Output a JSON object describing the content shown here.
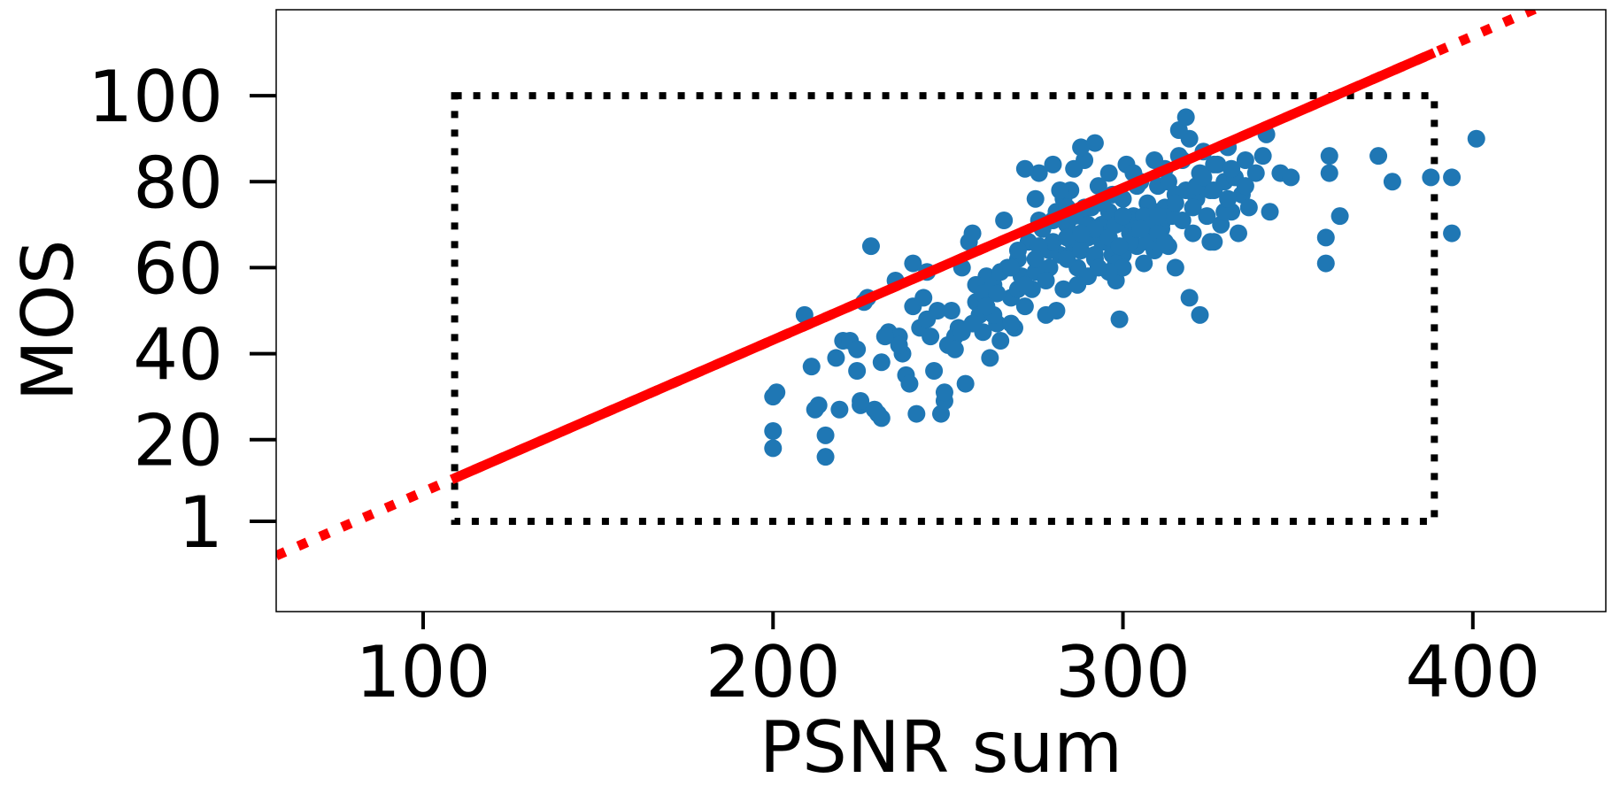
{
  "chart_data": {
    "type": "scatter",
    "title": "",
    "xlabel": "PSNR sum",
    "ylabel": "MOS",
    "xlim": [
      58,
      438
    ],
    "ylim": [
      -20,
      120
    ],
    "xticks": [
      100,
      200,
      300,
      400
    ],
    "xtick_labels": [
      "100",
      "200",
      "300",
      "400"
    ],
    "yticks": [
      1,
      20,
      40,
      60,
      80,
      100
    ],
    "ytick_labels": [
      "1",
      "20",
      "40",
      "60",
      "80",
      "100"
    ],
    "grid": false,
    "legend": "none",
    "colors": {
      "points": "#1f77b4",
      "fit_line": "#ff0000",
      "box": "#000000"
    },
    "fit_line": {
      "slope": 0.3535,
      "intercept": -27.5
    },
    "fit_segment": {
      "x": [
        109,
        389
      ]
    },
    "range_box": {
      "x": [
        109,
        389
      ],
      "y": [
        1,
        100
      ]
    },
    "series": [
      {
        "values": [
          [
            200,
            18
          ],
          [
            200,
            22
          ],
          [
            200,
            30
          ],
          [
            201,
            31
          ],
          [
            209,
            49
          ],
          [
            211,
            37
          ],
          [
            212,
            27
          ],
          [
            213,
            28
          ],
          [
            215,
            16
          ],
          [
            215,
            21
          ],
          [
            219,
            27
          ],
          [
            220,
            43
          ],
          [
            222,
            43
          ],
          [
            224,
            36
          ],
          [
            225,
            28
          ],
          [
            225,
            29
          ],
          [
            226,
            52
          ],
          [
            227,
            53
          ],
          [
            228,
            65
          ],
          [
            229,
            27
          ],
          [
            230,
            26
          ],
          [
            231,
            25
          ],
          [
            231,
            38
          ],
          [
            233,
            45
          ],
          [
            235,
            57
          ],
          [
            236,
            44
          ],
          [
            237,
            40
          ],
          [
            238,
            35
          ],
          [
            239,
            33
          ],
          [
            240,
            51
          ],
          [
            240,
            61
          ],
          [
            241,
            26
          ],
          [
            242,
            46
          ],
          [
            243,
            53
          ],
          [
            244,
            59
          ],
          [
            245,
            44
          ],
          [
            247,
            50
          ],
          [
            248,
            26
          ],
          [
            249,
            29
          ],
          [
            249,
            31
          ],
          [
            250,
            42
          ],
          [
            251,
            50
          ],
          [
            252,
            44
          ],
          [
            253,
            46
          ],
          [
            254,
            60
          ],
          [
            255,
            33
          ],
          [
            256,
            66
          ],
          [
            257,
            68
          ],
          [
            258,
            52
          ],
          [
            259,
            49
          ],
          [
            260,
            45
          ],
          [
            261,
            58
          ],
          [
            262,
            39
          ],
          [
            263,
            56
          ],
          [
            264,
            47
          ],
          [
            265,
            43
          ],
          [
            266,
            71
          ],
          [
            267,
            60
          ],
          [
            268,
            53
          ],
          [
            269,
            46
          ],
          [
            270,
            62
          ],
          [
            271,
            58
          ],
          [
            272,
            51
          ],
          [
            273,
            66
          ],
          [
            274,
            55
          ],
          [
            275,
            76
          ],
          [
            276,
            82
          ],
          [
            277,
            69
          ],
          [
            278,
            49
          ],
          [
            279,
            60
          ],
          [
            280,
            84
          ],
          [
            281,
            73
          ],
          [
            282,
            63
          ],
          [
            283,
            55
          ],
          [
            284,
            70
          ],
          [
            285,
            78
          ],
          [
            286,
            65
          ],
          [
            287,
            60
          ],
          [
            288,
            72
          ],
          [
            289,
            85
          ],
          [
            290,
            67
          ],
          [
            291,
            74
          ],
          [
            292,
            62
          ],
          [
            293,
            79
          ],
          [
            294,
            70
          ],
          [
            295,
            66
          ],
          [
            296,
            73
          ],
          [
            297,
            63
          ],
          [
            298,
            57
          ],
          [
            299,
            48
          ],
          [
            300,
            76
          ],
          [
            301,
            84
          ],
          [
            302,
            68
          ],
          [
            303,
            72
          ],
          [
            304,
            65
          ],
          [
            305,
            80
          ],
          [
            306,
            70
          ],
          [
            307,
            75
          ],
          [
            308,
            67
          ],
          [
            309,
            73
          ],
          [
            310,
            79
          ],
          [
            311,
            69
          ],
          [
            312,
            83
          ],
          [
            313,
            65
          ],
          [
            314,
            74
          ],
          [
            315,
            60
          ],
          [
            316,
            86
          ],
          [
            317,
            71
          ],
          [
            318,
            78
          ],
          [
            319,
            90
          ],
          [
            320,
            68
          ],
          [
            321,
            76
          ],
          [
            322,
            82
          ],
          [
            323,
            87
          ],
          [
            324,
            72
          ],
          [
            325,
            66
          ],
          [
            326,
            78
          ],
          [
            327,
            84
          ],
          [
            328,
            70
          ],
          [
            329,
            80
          ],
          [
            330,
            88
          ],
          [
            331,
            73
          ],
          [
            332,
            81
          ],
          [
            333,
            68
          ],
          [
            334,
            77
          ],
          [
            335,
            85
          ],
          [
            336,
            74
          ],
          [
            338,
            82
          ],
          [
            340,
            86
          ],
          [
            341,
            91
          ],
          [
            342,
            73
          ],
          [
            345,
            82
          ],
          [
            348,
            81
          ],
          [
            358,
            61
          ],
          [
            358,
            67
          ],
          [
            359,
            82
          ],
          [
            359,
            86
          ],
          [
            362,
            72
          ],
          [
            373,
            86
          ],
          [
            377,
            80
          ],
          [
            388,
            81
          ],
          [
            394,
            68
          ],
          [
            394,
            81
          ],
          [
            401,
            90
          ],
          [
            272,
            83
          ],
          [
            276,
            71
          ],
          [
            279,
            64
          ],
          [
            283,
            76
          ],
          [
            286,
            83
          ],
          [
            288,
            88
          ],
          [
            292,
            89
          ],
          [
            297,
            77
          ],
          [
            300,
            63
          ],
          [
            303,
            82
          ],
          [
            306,
            61
          ],
          [
            309,
            64
          ],
          [
            312,
            74
          ],
          [
            316,
            92
          ],
          [
            318,
            95
          ],
          [
            319,
            53
          ],
          [
            322,
            49
          ],
          [
            326,
            66
          ],
          [
            329,
            73
          ],
          [
            268,
            47
          ],
          [
            263,
            49
          ],
          [
            258,
            56
          ],
          [
            252,
            41
          ],
          [
            246,
            36
          ],
          [
            236,
            42
          ],
          [
            232,
            44
          ],
          [
            224,
            41
          ],
          [
            218,
            39
          ],
          [
            244,
            48
          ],
          [
            260,
            54
          ],
          [
            265,
            59
          ],
          [
            270,
            55
          ],
          [
            275,
            59
          ],
          [
            280,
            66
          ],
          [
            284,
            62
          ],
          [
            290,
            70
          ],
          [
            294,
            66
          ],
          [
            298,
            61
          ],
          [
            302,
            71
          ],
          [
            307,
            66
          ],
          [
            311,
            70
          ],
          [
            315,
            77
          ],
          [
            320,
            74
          ],
          [
            325,
            78
          ],
          [
            330,
            76
          ],
          [
            335,
            79
          ],
          [
            284,
            67
          ],
          [
            286,
            72
          ],
          [
            288,
            64
          ],
          [
            290,
            58
          ],
          [
            292,
            69
          ],
          [
            294,
            75
          ],
          [
            296,
            67
          ],
          [
            298,
            70
          ],
          [
            300,
            72
          ],
          [
            302,
            66
          ],
          [
            304,
            69
          ],
          [
            306,
            72
          ],
          [
            308,
            70
          ],
          [
            310,
            68
          ],
          [
            312,
            66
          ],
          [
            314,
            72
          ],
          [
            300,
            60
          ],
          [
            296,
            59
          ],
          [
            292,
            63
          ],
          [
            288,
            68
          ],
          [
            284,
            74
          ],
          [
            280,
            71
          ],
          [
            276,
            65
          ],
          [
            272,
            56
          ],
          [
            268,
            60
          ],
          [
            264,
            54
          ],
          [
            261,
            51
          ],
          [
            257,
            47
          ],
          [
            254,
            45
          ],
          [
            270,
            64
          ],
          [
            275,
            62
          ],
          [
            278,
            57
          ],
          [
            281,
            50
          ],
          [
            287,
            56
          ],
          [
            293,
            60
          ],
          [
            299,
            65
          ],
          [
            305,
            69
          ],
          [
            310,
            72
          ],
          [
            315,
            75
          ],
          [
            321,
            79
          ],
          [
            326,
            84
          ],
          [
            331,
            83
          ],
          [
            317,
            85
          ],
          [
            323,
            81
          ],
          [
            313,
            80
          ],
          [
            309,
            85
          ],
          [
            304,
            79
          ],
          [
            296,
            82
          ],
          [
            289,
            74
          ],
          [
            282,
            78
          ]
        ]
      }
    ]
  }
}
